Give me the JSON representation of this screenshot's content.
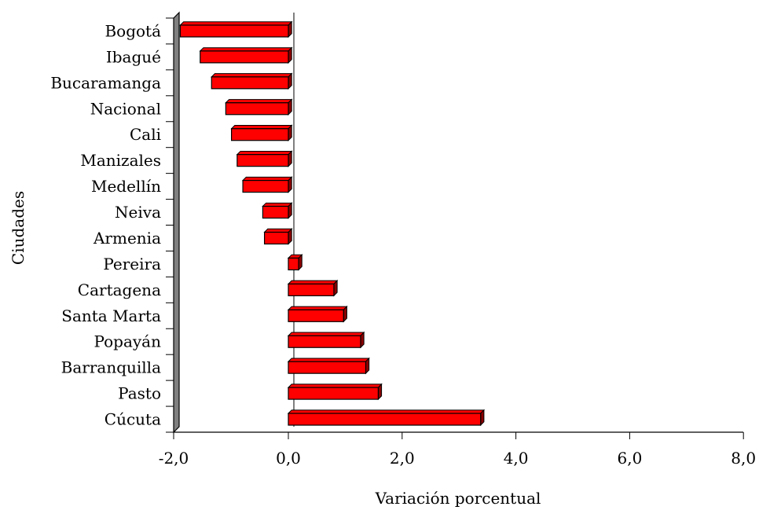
{
  "chart_data": {
    "type": "bar",
    "orientation": "horizontal",
    "title": "",
    "xlabel": "Variación porcentual",
    "ylabel": "Ciudades",
    "xlim": [
      -2,
      8
    ],
    "xticks": [
      -2,
      0,
      2,
      4,
      6,
      8
    ],
    "xtick_labels": [
      "-2,0",
      "0,0",
      "2,0",
      "4,0",
      "6,0",
      "8,0"
    ],
    "grid": false,
    "legend": "none",
    "bar_color": "#ff0000",
    "bar_side_color": "#8b0000",
    "wall_color": "#808080",
    "categories": [
      "Bogotá",
      "Ibagué",
      "Bucaramanga",
      "Nacional",
      "Cali",
      "Manizales",
      "Medellín",
      "Neiva",
      "Armenia",
      "Pereira",
      "Cartagena",
      "Santa Marta",
      "Popayán",
      "Barranquilla",
      "Pasto",
      "Cúcuta"
    ],
    "values": [
      -1.9,
      -1.55,
      -1.35,
      -1.1,
      -1.0,
      -0.9,
      -0.8,
      -0.45,
      -0.42,
      0.18,
      0.8,
      0.97,
      1.27,
      1.36,
      1.58,
      3.38
    ]
  }
}
